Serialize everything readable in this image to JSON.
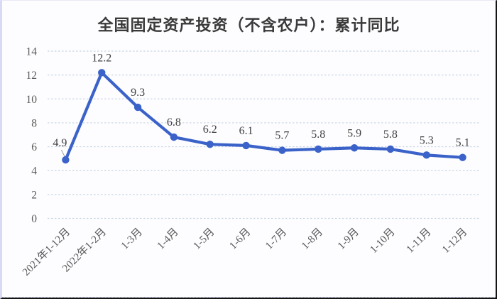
{
  "title": "全国固定资产投资（不含农户）：累计同比",
  "colors": {
    "line": "#3a62c8",
    "marker": "#3a62c8",
    "grid": "#c9d6e4",
    "tick_label": "#595959",
    "data_label": "#404040",
    "title": "#3a3a3a",
    "leader_line": "#9a9a9a",
    "background": "#fdfdff"
  },
  "chart_data": {
    "type": "line",
    "title": "全国固定资产投资（不含农户）：累计同比",
    "categories": [
      "2021年1-12月",
      "2022年1-2月",
      "1-3月",
      "1-4月",
      "1-5月",
      "1-6月",
      "1-7月",
      "1-8月",
      "1-9月",
      "1-10月",
      "1-11月",
      "1-12月"
    ],
    "series": [
      {
        "name": "全国固定资产投资（不含农户）：累计同比",
        "values": [
          4.9,
          12.2,
          9.3,
          6.8,
          6.2,
          6.1,
          5.7,
          5.8,
          5.9,
          5.8,
          5.3,
          5.1
        ]
      }
    ],
    "data_labels": [
      4.9,
      12.2,
      9.3,
      6.8,
      6.2,
      6.1,
      5.7,
      5.8,
      5.9,
      5.8,
      5.3,
      5.1
    ],
    "xlabel": "",
    "ylabel": "",
    "ylim": [
      0,
      14
    ],
    "ytick_step": 2,
    "yticks": [
      0,
      2,
      4,
      6,
      8,
      10,
      12,
      14
    ],
    "grid": true,
    "gridline_style": "dashed",
    "legend": "none",
    "marker": "circle",
    "x_label_rotation_deg": 45
  }
}
